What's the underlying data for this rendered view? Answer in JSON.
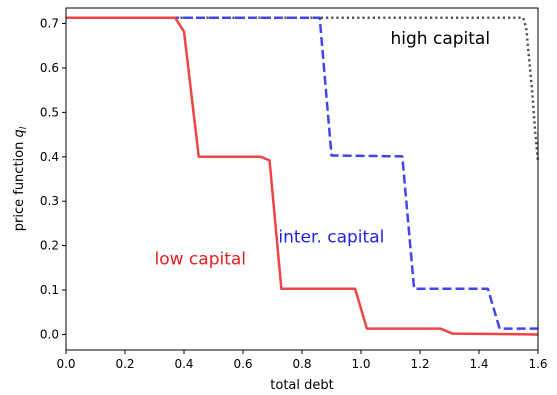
{
  "chart_data": {
    "type": "line",
    "xlabel": "total debt",
    "ylabel_main": "price function ",
    "ylabel_symbol": "q",
    "ylabel_subscript": "l",
    "xlim": [
      0.0,
      1.6
    ],
    "ylim": [
      -0.035,
      0.735
    ],
    "xticks": [
      0.0,
      0.2,
      0.4,
      0.6,
      0.8,
      1.0,
      1.2,
      1.4,
      1.6
    ],
    "xtick_labels": [
      "0.0",
      "0.2",
      "0.4",
      "0.6",
      "0.8",
      "1.0",
      "1.2",
      "1.4",
      "1.6"
    ],
    "yticks": [
      0.0,
      0.1,
      0.2,
      0.3,
      0.4,
      0.5,
      0.6,
      0.7
    ],
    "ytick_labels": [
      "0.0",
      "0.1",
      "0.2",
      "0.3",
      "0.4",
      "0.5",
      "0.6",
      "0.7"
    ],
    "grid": false,
    "series": [
      {
        "name": "high capital",
        "color": "#555555",
        "dash": "dotted",
        "x": [
          0.0,
          1.55,
          1.56,
          1.57,
          1.58,
          1.59,
          1.6
        ],
        "y": [
          0.713,
          0.713,
          0.69,
          0.62,
          0.55,
          0.46,
          0.39
        ]
      },
      {
        "name": "inter. capital",
        "color": "#4444ee",
        "dash": "dashed",
        "x": [
          0.0,
          0.86,
          0.9,
          1.14,
          1.18,
          1.43,
          1.47,
          1.6
        ],
        "y": [
          0.713,
          0.713,
          0.403,
          0.401,
          0.103,
          0.103,
          0.013,
          0.013
        ]
      },
      {
        "name": "low capital",
        "color": "#ee4444",
        "dash": "solid",
        "x": [
          0.0,
          0.37,
          0.4,
          0.45,
          0.66,
          0.69,
          0.73,
          0.98,
          1.02,
          1.27,
          1.31,
          1.6
        ],
        "y": [
          0.713,
          0.713,
          0.682,
          0.4,
          0.4,
          0.392,
          0.103,
          0.103,
          0.013,
          0.013,
          0.002,
          0.0
        ]
      }
    ],
    "annotations": [
      {
        "text": "high capital",
        "x": 1.1,
        "y": 0.654,
        "color": "#000000"
      },
      {
        "text": "inter. capital",
        "x": 0.72,
        "y": 0.207,
        "color": "#1f1fe0"
      },
      {
        "text": "low capital",
        "x": 0.3,
        "y": 0.157,
        "color": "#e0201f"
      }
    ]
  }
}
